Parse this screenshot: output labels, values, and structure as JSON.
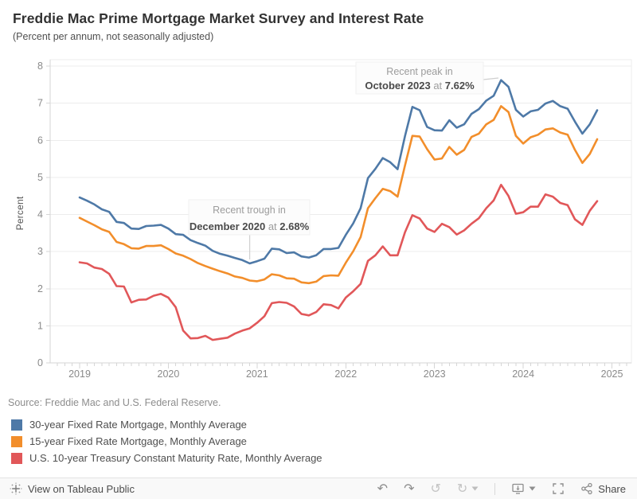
{
  "header": {
    "title": "Freddie Mac Prime Mortgage Market Survey and Interest Rate",
    "subtitle": "(Percent per annum, not seasonally adjusted)"
  },
  "chart_data": {
    "type": "line",
    "title": "Freddie Mac Prime Mortgage Market Survey and Interest Rate",
    "subtitle": "(Percent per annum, not seasonally adjusted)",
    "ylabel": "Percent",
    "xlabel": "",
    "ylim": [
      0,
      8
    ],
    "y_ticks": [
      "0",
      "1",
      "2",
      "3",
      "4",
      "5",
      "6",
      "7",
      "8"
    ],
    "x_ticks": [
      "2019",
      "2020",
      "2021",
      "2022",
      "2023",
      "2024",
      "2025"
    ],
    "x_start": "2019-01",
    "x_interval": "monthly",
    "grid": true,
    "legend_position": "bottom-left",
    "series": [
      {
        "name": "30-year Fixed Rate Mortgage, Monthly Average",
        "color": "#4e79a7",
        "values": [
          4.46,
          4.37,
          4.27,
          4.14,
          4.07,
          3.8,
          3.77,
          3.62,
          3.61,
          3.69,
          3.7,
          3.72,
          3.62,
          3.47,
          3.45,
          3.31,
          3.23,
          3.16,
          3.02,
          2.94,
          2.89,
          2.83,
          2.77,
          2.68,
          2.74,
          2.81,
          3.08,
          3.06,
          2.96,
          2.98,
          2.87,
          2.84,
          2.9,
          3.07,
          3.07,
          3.1,
          3.45,
          3.76,
          4.17,
          4.98,
          5.23,
          5.52,
          5.41,
          5.22,
          6.11,
          6.9,
          6.81,
          6.36,
          6.27,
          6.26,
          6.54,
          6.34,
          6.43,
          6.71,
          6.84,
          7.07,
          7.2,
          7.62,
          7.44,
          6.82,
          6.64,
          6.78,
          6.82,
          6.99,
          7.06,
          6.92,
          6.85,
          6.5,
          6.18,
          6.43,
          6.81
        ]
      },
      {
        "name": "15-year Fixed Rate Mortgage, Monthly Average",
        "color": "#f28e2b",
        "values": [
          3.91,
          3.81,
          3.71,
          3.6,
          3.53,
          3.26,
          3.2,
          3.09,
          3.08,
          3.15,
          3.15,
          3.17,
          3.07,
          2.95,
          2.89,
          2.8,
          2.69,
          2.61,
          2.54,
          2.47,
          2.41,
          2.33,
          2.29,
          2.22,
          2.2,
          2.25,
          2.39,
          2.36,
          2.28,
          2.27,
          2.17,
          2.15,
          2.19,
          2.34,
          2.36,
          2.35,
          2.7,
          3.01,
          3.39,
          4.17,
          4.44,
          4.69,
          4.63,
          4.48,
          5.32,
          6.12,
          6.1,
          5.76,
          5.48,
          5.51,
          5.82,
          5.61,
          5.74,
          6.09,
          6.18,
          6.43,
          6.55,
          6.92,
          6.76,
          6.12,
          5.91,
          6.08,
          6.15,
          6.29,
          6.32,
          6.21,
          6.15,
          5.74,
          5.39,
          5.63,
          6.03
        ]
      },
      {
        "name": "U.S. 10-year Treasury Constant Maturity Rate, Monthly Average",
        "color": "#e15759",
        "values": [
          2.71,
          2.68,
          2.57,
          2.53,
          2.4,
          2.07,
          2.06,
          1.63,
          1.7,
          1.71,
          1.81,
          1.86,
          1.76,
          1.5,
          0.87,
          0.66,
          0.67,
          0.73,
          0.62,
          0.65,
          0.68,
          0.79,
          0.87,
          0.93,
          1.08,
          1.26,
          1.61,
          1.64,
          1.62,
          1.52,
          1.32,
          1.28,
          1.37,
          1.58,
          1.56,
          1.47,
          1.76,
          1.93,
          2.13,
          2.75,
          2.9,
          3.14,
          2.9,
          2.9,
          3.52,
          3.98,
          3.89,
          3.62,
          3.53,
          3.75,
          3.66,
          3.46,
          3.57,
          3.75,
          3.9,
          4.17,
          4.38,
          4.8,
          4.5,
          4.02,
          4.06,
          4.21,
          4.21,
          4.54,
          4.48,
          4.31,
          4.25,
          3.87,
          3.72,
          4.1,
          4.36
        ]
      }
    ],
    "annotations": [
      {
        "id": "peak",
        "line1": "Recent peak in",
        "date": "October 2023",
        "joiner": " at ",
        "value": "7.62%",
        "anchor_month": 57,
        "anchor_value": 7.62
      },
      {
        "id": "trough",
        "line1": "Recent trough in",
        "date": "December 2020",
        "joiner": " at ",
        "value": "2.68%",
        "anchor_month": 23,
        "anchor_value": 2.68
      }
    ]
  },
  "source": "Source: Freddie Mac and U.S. Federal Reserve.",
  "legend": {
    "items": [
      {
        "label": "30-year Fixed Rate Mortgage, Monthly Average",
        "color": "#4e79a7"
      },
      {
        "label": "15-year Fixed Rate Mortgage, Monthly Average",
        "color": "#f28e2b"
      },
      {
        "label": "U.S. 10-year Treasury Constant Maturity Rate, Monthly Average",
        "color": "#e15759"
      }
    ]
  },
  "toolbar": {
    "view_on": "View on Tableau Public",
    "share": "Share"
  },
  "colors": {
    "blue": "#4e79a7",
    "orange": "#f28e2b",
    "red": "#e15759",
    "grid": "#ececec",
    "axis": "#d6d6d6",
    "tick_label": "#8a8a8a",
    "annotation_muted": "#9c9c9c",
    "annotation_dark": "#4a4a4a",
    "leader": "#cfcfcf"
  }
}
